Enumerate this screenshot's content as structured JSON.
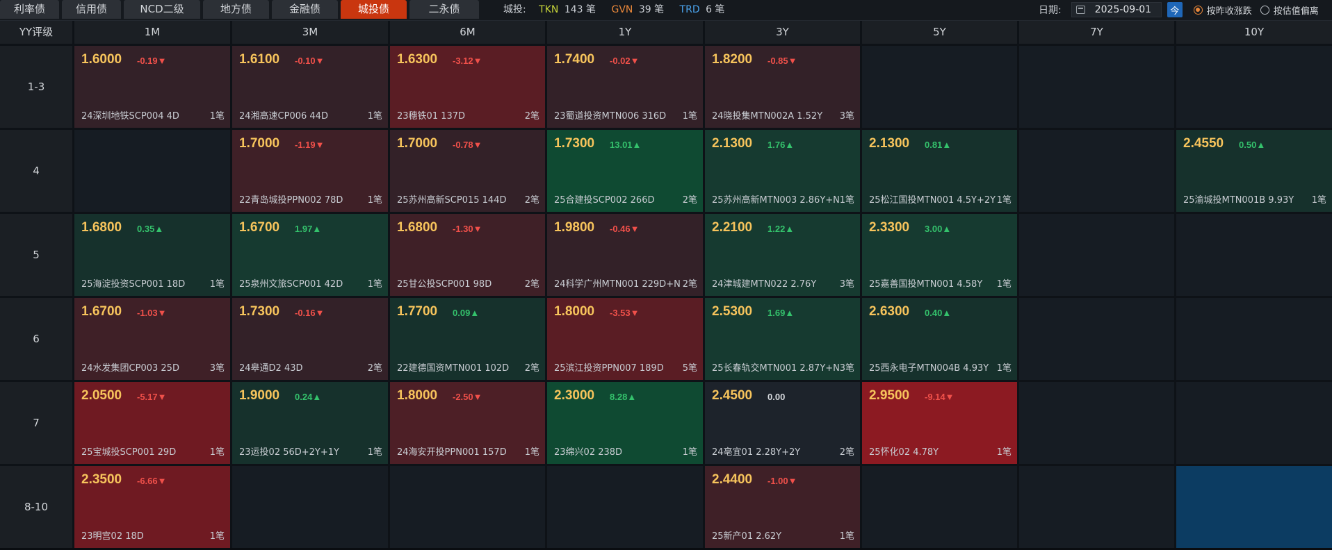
{
  "tabs": [
    {
      "label": "利率债",
      "active": false,
      "width": 85
    },
    {
      "label": "信用债",
      "active": false,
      "width": 85
    },
    {
      "label": "NCD二级",
      "active": false,
      "width": 110
    },
    {
      "label": "地方债",
      "active": false,
      "width": 95
    },
    {
      "label": "金融债",
      "active": false,
      "width": 95
    },
    {
      "label": "城投债",
      "active": true,
      "width": 95
    },
    {
      "label": "二永债",
      "active": false,
      "width": 100
    }
  ],
  "stats": {
    "label": "城投:",
    "tkn_label": "TKN",
    "tkn_count": "143 笔",
    "tkn_color": "#c6d43a",
    "gvn_label": "GVN",
    "gvn_count": "39 笔",
    "gvn_color": "#e8873a",
    "trd_label": "TRD",
    "trd_count": "6 笔",
    "trd_color": "#4aa3ec"
  },
  "date": {
    "label": "日期:",
    "value": "2025-09-01",
    "today_button": "今",
    "radio_options": [
      {
        "label": "按昨收涨跌",
        "selected": true
      },
      {
        "label": "按估值偏离",
        "selected": false
      }
    ]
  },
  "grid": {
    "corner_label": "YY评级",
    "columns": [
      "1M",
      "3M",
      "6M",
      "1Y",
      "3Y",
      "5Y",
      "7Y",
      "10Y"
    ],
    "rows": [
      {
        "label": "1-3",
        "cells": [
          {
            "yield": "1.6000",
            "chg": "-0.19",
            "dir": "down",
            "bond": "24深圳地铁SCP004 4D",
            "trades": "1笔"
          },
          {
            "yield": "1.6100",
            "chg": "-0.10",
            "dir": "down",
            "bond": "24湘高速CP006 44D",
            "trades": "1笔"
          },
          {
            "yield": "1.6300",
            "chg": "-3.12",
            "dir": "down",
            "bond": "23穗铁01 137D",
            "trades": "2笔"
          },
          {
            "yield": "1.7400",
            "chg": "-0.02",
            "dir": "down",
            "bond": "23蜀道投资MTN006 316D",
            "trades": "1笔"
          },
          {
            "yield": "1.8200",
            "chg": "-0.85",
            "dir": "down",
            "bond": "24晓投集MTN002A 1.52Y",
            "trades": "3笔"
          },
          null,
          null,
          null
        ]
      },
      {
        "label": "4",
        "cells": [
          null,
          {
            "yield": "1.7000",
            "chg": "-1.19",
            "dir": "down",
            "bond": "22青岛城投PPN002 78D",
            "trades": "1笔"
          },
          {
            "yield": "1.7000",
            "chg": "-0.78",
            "dir": "down",
            "bond": "25苏州高新SCP015 144D",
            "trades": "2笔"
          },
          {
            "yield": "1.7300",
            "chg": "13.01",
            "dir": "up",
            "bond": "25合建投SCP002 266D",
            "trades": "2笔"
          },
          {
            "yield": "2.1300",
            "chg": "1.76",
            "dir": "up",
            "bond": "25苏州高新MTN003 2.86Y+N",
            "trades": "1笔"
          },
          {
            "yield": "2.1300",
            "chg": "0.81",
            "dir": "up",
            "bond": "25松江国投MTN001 4.5Y+2Y",
            "trades": "1笔"
          },
          null,
          {
            "yield": "2.4550",
            "chg": "0.50",
            "dir": "up",
            "bond": "25渝城投MTN001B 9.93Y",
            "trades": "1笔"
          }
        ]
      },
      {
        "label": "5",
        "cells": [
          {
            "yield": "1.6800",
            "chg": "0.35",
            "dir": "up",
            "bond": "25海淀投资SCP001 18D",
            "trades": "1笔"
          },
          {
            "yield": "1.6700",
            "chg": "1.97",
            "dir": "up",
            "bond": "25泉州文旅SCP001 42D",
            "trades": "1笔"
          },
          {
            "yield": "1.6800",
            "chg": "-1.30",
            "dir": "down",
            "bond": "25甘公投SCP001 98D",
            "trades": "2笔"
          },
          {
            "yield": "1.9800",
            "chg": "-0.46",
            "dir": "down",
            "bond": "24科学广州MTN001 229D+N",
            "trades": "2笔"
          },
          {
            "yield": "2.2100",
            "chg": "1.22",
            "dir": "up",
            "bond": "24津城建MTN022 2.76Y",
            "trades": "3笔"
          },
          {
            "yield": "2.3300",
            "chg": "3.00",
            "dir": "up",
            "bond": "25嘉善国投MTN001 4.58Y",
            "trades": "1笔"
          },
          null,
          null
        ]
      },
      {
        "label": "6",
        "cells": [
          {
            "yield": "1.6700",
            "chg": "-1.03",
            "dir": "down",
            "bond": "24水发集团CP003 25D",
            "trades": "3笔"
          },
          {
            "yield": "1.7300",
            "chg": "-0.16",
            "dir": "down",
            "bond": "24皋通D2 43D",
            "trades": "2笔"
          },
          {
            "yield": "1.7700",
            "chg": "0.09",
            "dir": "up",
            "bond": "22建德国资MTN001 102D",
            "trades": "2笔"
          },
          {
            "yield": "1.8000",
            "chg": "-3.53",
            "dir": "down",
            "bond": "25滨江投资PPN007 189D",
            "trades": "5笔"
          },
          {
            "yield": "2.5300",
            "chg": "1.69",
            "dir": "up",
            "bond": "25长春轨交MTN001 2.87Y+N",
            "trades": "3笔"
          },
          {
            "yield": "2.6300",
            "chg": "0.40",
            "dir": "up",
            "bond": "25西永电子MTN004B 4.93Y",
            "trades": "1笔"
          },
          null,
          null
        ]
      },
      {
        "label": "7",
        "cells": [
          {
            "yield": "2.0500",
            "chg": "-5.17",
            "dir": "down",
            "bond": "25宝城投SCP001 29D",
            "trades": "1笔"
          },
          {
            "yield": "1.9000",
            "chg": "0.24",
            "dir": "up",
            "bond": "23运投02 56D+2Y+1Y",
            "trades": "1笔"
          },
          {
            "yield": "1.8000",
            "chg": "-2.50",
            "dir": "down",
            "bond": "24海安开投PPN001 157D",
            "trades": "1笔"
          },
          {
            "yield": "2.3000",
            "chg": "8.28",
            "dir": "up",
            "bond": "23绵兴02 238D",
            "trades": "1笔"
          },
          {
            "yield": "2.4500",
            "chg": "0.00",
            "dir": "flat",
            "bond": "24亳宜01 2.28Y+2Y",
            "trades": "2笔"
          },
          {
            "yield": "2.9500",
            "chg": "-9.14",
            "dir": "down",
            "bond": "25怀化02 4.78Y",
            "trades": "1笔"
          },
          null,
          null
        ]
      },
      {
        "label": "8-10",
        "cells": [
          {
            "yield": "2.3500",
            "chg": "-6.66",
            "dir": "down",
            "bond": "23明宫02 18D",
            "trades": "1笔"
          },
          null,
          null,
          null,
          {
            "yield": "2.4400",
            "chg": "-1.00",
            "dir": "down",
            "bond": "25新产01 2.62Y",
            "trades": "1笔"
          },
          null,
          null,
          {
            "selected_empty": true
          }
        ]
      }
    ]
  },
  "colors": {
    "up_text": "#34c26c",
    "down_text": "#f0504a",
    "yield_text": "#f7c45c",
    "active_tab": "#c9360f",
    "empty_cell": "#161c23",
    "selected_cell": "#0c3c62"
  }
}
